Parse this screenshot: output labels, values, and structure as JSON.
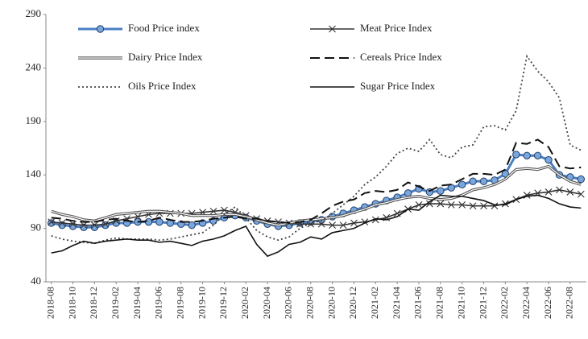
{
  "chart_data": {
    "type": "line",
    "categories": [
      "2018-08",
      null,
      "2018-10",
      null,
      "2018-12",
      null,
      "2019-02",
      null,
      "2019-04",
      null,
      "2019-06",
      null,
      "2019-08",
      null,
      "2019-10",
      null,
      "2019-12",
      null,
      "2020-02",
      null,
      "2020-04",
      null,
      "2020-06",
      null,
      "2020-08",
      null,
      "2020-10",
      null,
      "2020-12",
      null,
      "2021-02",
      null,
      "2021-04",
      null,
      "2021-06",
      null,
      "2021-08",
      null,
      "2021-10",
      null,
      "2021-12",
      null,
      "2022-02",
      null,
      "2022-04",
      null,
      "2022-06",
      null,
      "2022-08",
      null
    ],
    "ylim": [
      40,
      290
    ],
    "yticks": [
      40,
      90,
      140,
      190,
      240,
      290
    ],
    "grid": false,
    "series": [
      {
        "name": "Food Price index",
        "color": "#4a7fc4",
        "line_style": "solid",
        "marker": "circle",
        "values": [
          95,
          93,
          92,
          91,
          91,
          93,
          95,
          95,
          96,
          96,
          96,
          95,
          94,
          93,
          95,
          97,
          100,
          102,
          100,
          97,
          94,
          92,
          93,
          95,
          96,
          98,
          101,
          104,
          107,
          110,
          113,
          116,
          119,
          123,
          127,
          124,
          125,
          128,
          131,
          134,
          134,
          135,
          141,
          159,
          158,
          158,
          154,
          140,
          138,
          136
        ]
      },
      {
        "name": "Meat Price Index",
        "color": "#333333",
        "line_style": "solid",
        "marker": "x",
        "values": [
          96,
          95,
          94,
          93,
          93,
          94,
          97,
          99,
          101,
          103,
          104,
          104,
          104,
          104,
          105,
          106,
          107,
          105,
          102,
          99,
          97,
          96,
          95,
          94,
          94,
          94,
          93,
          93,
          95,
          96,
          98,
          100,
          104,
          108,
          112,
          113,
          113,
          112,
          112,
          111,
          111,
          111,
          113,
          117,
          121,
          123,
          124,
          126,
          124,
          122
        ]
      },
      {
        "name": "Dairy Price Index",
        "color": "#555555",
        "line_style": "double",
        "marker": "none",
        "values": [
          106,
          103,
          101,
          98,
          97,
          100,
          103,
          104,
          105,
          106,
          106,
          105,
          104,
          102,
          102,
          102,
          103,
          103,
          101,
          98,
          95,
          93,
          95,
          97,
          98,
          99,
          100,
          102,
          105,
          108,
          112,
          114,
          117,
          119,
          120,
          118,
          117,
          118,
          121,
          126,
          128,
          131,
          136,
          145,
          146,
          145,
          148,
          140,
          134,
          131
        ]
      },
      {
        "name": "Cereals Price Index",
        "color": "#111111",
        "line_style": "dashed",
        "marker": "none",
        "values": [
          100,
          99,
          97,
          96,
          96,
          98,
          99,
          97,
          96,
          97,
          100,
          98,
          96,
          96,
          97,
          99,
          100,
          101,
          99,
          99,
          97,
          96,
          95,
          96,
          98,
          104,
          111,
          115,
          117,
          123,
          125,
          124,
          126,
          133,
          129,
          125,
          130,
          131,
          136,
          141,
          141,
          140,
          145,
          170,
          169,
          173,
          166,
          148,
          146,
          147
        ]
      },
      {
        "name": "Oils Price Index",
        "color": "#444444",
        "line_style": "dotted",
        "marker": "none",
        "values": [
          83,
          80,
          78,
          77,
          76,
          79,
          81,
          80,
          80,
          80,
          79,
          80,
          82,
          84,
          86,
          93,
          103,
          110,
          100,
          88,
          82,
          79,
          82,
          90,
          95,
          97,
          104,
          112,
          120,
          131,
          138,
          148,
          160,
          165,
          162,
          173,
          159,
          156,
          166,
          168,
          185,
          186,
          182,
          200,
          251,
          237,
          227,
          212,
          168,
          163
        ]
      },
      {
        "name": "Sugar Price Index",
        "color": "#111111",
        "line_style": "solid",
        "marker": "none",
        "values": [
          67,
          69,
          74,
          78,
          76,
          78,
          79,
          80,
          79,
          79,
          77,
          78,
          76,
          74,
          78,
          80,
          83,
          88,
          92,
          75,
          64,
          68,
          75,
          77,
          82,
          80,
          86,
          88,
          90,
          95,
          99,
          98,
          101,
          108,
          107,
          115,
          121,
          120,
          120,
          118,
          116,
          112,
          112,
          117,
          120,
          121,
          118,
          113,
          110,
          109
        ]
      }
    ]
  }
}
